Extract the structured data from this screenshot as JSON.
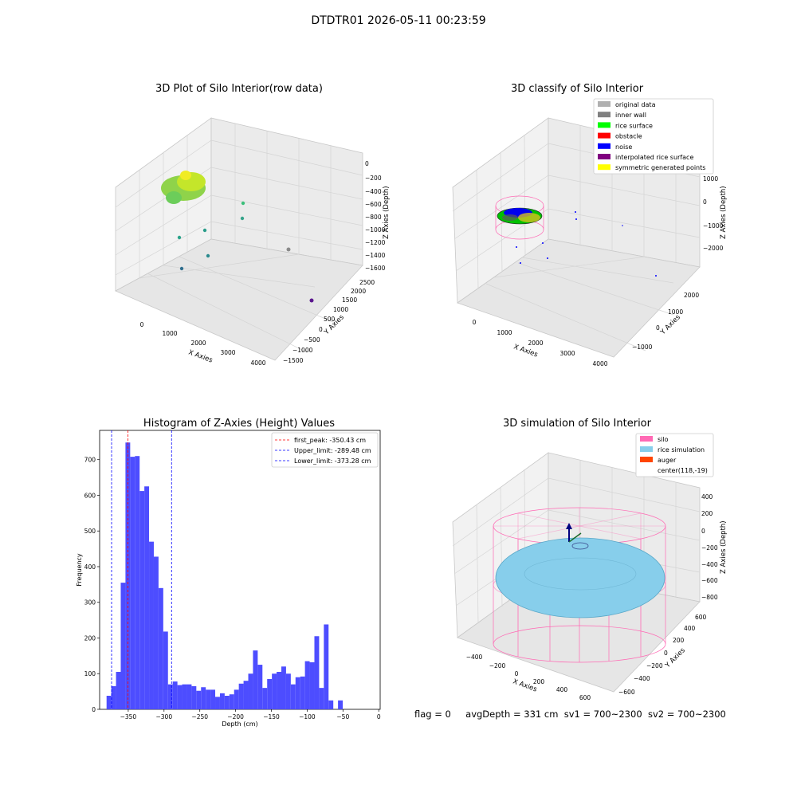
{
  "suptitle": "DTDTR01 2026-05-11 00:23:59",
  "colors": {
    "hist_bar": "#4d4dff",
    "first_peak_line": "#ff0000",
    "limit_line": "#0000ff",
    "silo_wire": "#ff69b4",
    "rice_fill": "#87ceeb",
    "auger": "#ff4500",
    "pane_fill": "#f2f2f2",
    "grid": "#d8d8d8"
  },
  "panel_raw": {
    "title": "3D Plot of Silo Interior(row data)",
    "xlabel": "X Axies",
    "ylabel": "Y Axies",
    "zlabel": "Z Axies (Depth)",
    "x_ticks": [
      "0",
      "1000",
      "2000",
      "3000",
      "4000"
    ],
    "y_ticks": [
      "−1500",
      "−1000",
      "−500",
      "0",
      "500",
      "1000",
      "1500",
      "2000",
      "2500"
    ],
    "z_ticks": [
      "0",
      "−200",
      "−400",
      "−600",
      "−800",
      "−1000",
      "−1200",
      "−1400",
      "−1600"
    ]
  },
  "panel_classify": {
    "title": "3D classify of Silo Interior",
    "xlabel": "X Axies",
    "ylabel": "Y Axies",
    "zlabel": "Z Axies (Depth)",
    "x_ticks": [
      "0",
      "1000",
      "2000",
      "3000",
      "4000"
    ],
    "y_ticks": [
      "−1000",
      "0",
      "1000",
      "2000"
    ],
    "z_ticks": [
      "1000",
      "0",
      "−1000",
      "−2000"
    ],
    "legend": [
      {
        "label": "original data",
        "color": "#b0b0b0"
      },
      {
        "label": "inner wall",
        "color": "#808080"
      },
      {
        "label": "rice surface",
        "color": "#00ff00"
      },
      {
        "label": "obstacle",
        "color": "#ff0000"
      },
      {
        "label": "noise",
        "color": "#0000ff"
      },
      {
        "label": "interpolated rice surface",
        "color": "#800080"
      },
      {
        "label": "symmetric generated points",
        "color": "#ffff00"
      }
    ]
  },
  "panel_sim": {
    "title": "3D simulation of Silo Interior",
    "xlabel": "X Axies",
    "ylabel": "Y Axies",
    "zlabel": "Z Axies (Depth)",
    "x_ticks": [
      "−400",
      "−200",
      "0",
      "200",
      "400",
      "600"
    ],
    "y_ticks": [
      "−600",
      "−400",
      "−200",
      "0",
      "200",
      "400",
      "600"
    ],
    "z_ticks": [
      "400",
      "200",
      "0",
      "−200",
      "−400",
      "−600",
      "−800"
    ],
    "legend": [
      {
        "label": "silo",
        "color": "#ff69b4"
      },
      {
        "label": "rice simulation",
        "color": "#87ceeb"
      },
      {
        "label": "auger",
        "color": "#ff4500"
      },
      {
        "label": "center(118,-19)",
        "color": ""
      }
    ]
  },
  "chart_data": {
    "type": "bar",
    "title": "Histogram of Z-Axies (Height) Values",
    "xlabel": "Depth (cm)",
    "ylabel": "Frequency",
    "xlim": [
      -390,
      2
    ],
    "ylim": [
      0,
      782
    ],
    "x_ticks": [
      -350,
      -300,
      -250,
      -200,
      -150,
      -100,
      -50,
      0
    ],
    "x_tick_labels": [
      "−350",
      "−300",
      "−250",
      "−200",
      "−150",
      "−100",
      "−50",
      "0"
    ],
    "y_ticks": [
      0,
      100,
      200,
      300,
      400,
      500,
      600,
      700
    ],
    "bin_width": 6.6,
    "bin_start": -380.3,
    "values": [
      38,
      65,
      105,
      355,
      748,
      708,
      710,
      612,
      625,
      470,
      428,
      340,
      218,
      70,
      78,
      68,
      70,
      70,
      65,
      52,
      62,
      55,
      55,
      35,
      45,
      38,
      42,
      55,
      72,
      80,
      100,
      165,
      125,
      60,
      85,
      100,
      105,
      120,
      100,
      70,
      90,
      92,
      135,
      132,
      205,
      60,
      238,
      25,
      0,
      25
    ],
    "lines": [
      {
        "label": "first_peak: -350.43 cm",
        "x": -350.43,
        "color": "#ff0000"
      },
      {
        "label": "Upper_limit: -289.48 cm",
        "x": -289.48,
        "color": "#0000ff"
      },
      {
        "label": "Lower_limit: -373.28 cm",
        "x": -373.28,
        "color": "#0000ff"
      }
    ]
  },
  "footer": {
    "flag": "flag = 0",
    "avg_depth": "avgDepth = 331 cm",
    "sv1": "sv1 = 700~2300",
    "sv2": "sv2 = 700~2300"
  }
}
